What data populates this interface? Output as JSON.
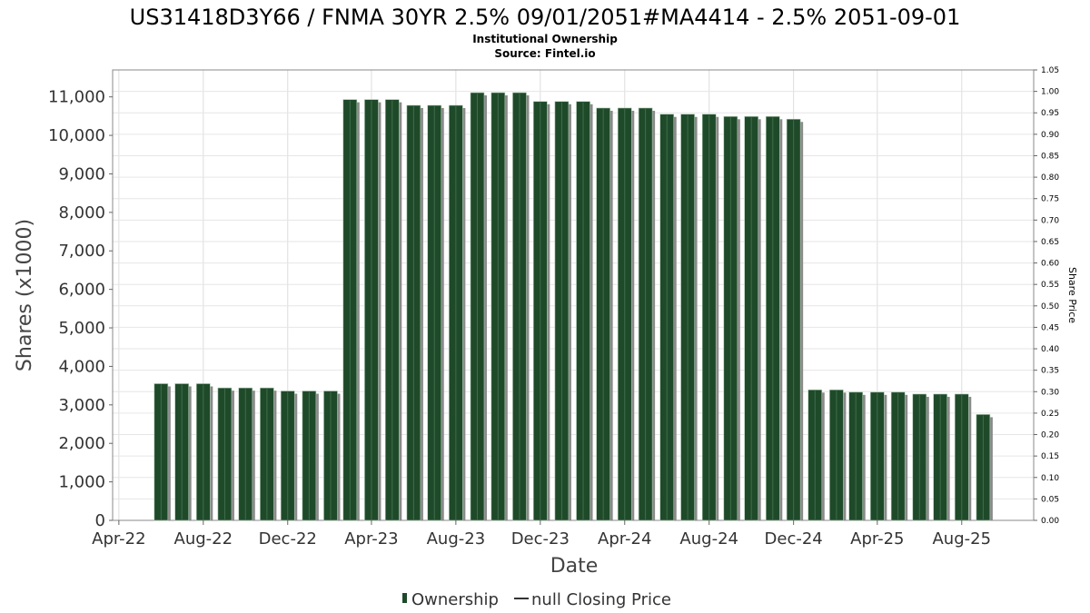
{
  "chart_data": {
    "type": "bar",
    "title": "US31418D3Y66 / FNMA 30YR 2.5% 09/01/2051#MA4414 - 2.5% 2051-09-01",
    "subtitle": "Institutional Ownership",
    "source": "Source: Fintel.io",
    "xlabel": "Date",
    "ylabel": "Shares (x1000)",
    "y2label": "Share Price",
    "ylim": [
      0,
      11700
    ],
    "y2lim": [
      0,
      1.05
    ],
    "yticks": [
      0,
      1000,
      2000,
      3000,
      4000,
      5000,
      6000,
      7000,
      8000,
      9000,
      10000,
      11000
    ],
    "ytick_labels": [
      "0",
      "1,000",
      "2,000",
      "3,000",
      "4,000",
      "5,000",
      "6,000",
      "7,000",
      "8,000",
      "9,000",
      "10,000",
      "11,000"
    ],
    "y2ticks": [
      0,
      0.05,
      0.1,
      0.15,
      0.2,
      0.25,
      0.3,
      0.35,
      0.4,
      0.45,
      0.5,
      0.55,
      0.6,
      0.65,
      0.7,
      0.75,
      0.8,
      0.85,
      0.9,
      0.95,
      1.0,
      1.05
    ],
    "y2tick_labels": [
      "0.00",
      "0.05",
      "0.10",
      "0.15",
      "0.20",
      "0.25",
      "0.30",
      "0.35",
      "0.40",
      "0.45",
      "0.50",
      "0.55",
      "0.60",
      "0.65",
      "0.70",
      "0.75",
      "0.80",
      "0.85",
      "0.90",
      "0.95",
      "1.00",
      "1.05"
    ],
    "xlim": [
      "2022-03-23",
      "2025-11-13"
    ],
    "xticks": [
      "2022-04-01",
      "2022-08-01",
      "2022-12-01",
      "2023-04-01",
      "2023-08-01",
      "2023-12-01",
      "2024-04-01",
      "2024-08-01",
      "2024-12-01",
      "2025-04-01",
      "2025-08-01"
    ],
    "xtick_labels": [
      "Apr-22",
      "Aug-22",
      "Dec-22",
      "Apr-23",
      "Aug-23",
      "Dec-23",
      "Apr-24",
      "Aug-24",
      "Dec-24",
      "Apr-25",
      "Aug-25"
    ],
    "grid": true,
    "legend_placement": "bottom-center",
    "series": [
      {
        "name": "Ownership",
        "color": "#1f4a2a",
        "points": [
          {
            "x": "2022-06-01",
            "y": 3550
          },
          {
            "x": "2022-07-01",
            "y": 3550
          },
          {
            "x": "2022-08-01",
            "y": 3550
          },
          {
            "x": "2022-09-01",
            "y": 3440
          },
          {
            "x": "2022-10-01",
            "y": 3440
          },
          {
            "x": "2022-11-01",
            "y": 3440
          },
          {
            "x": "2022-12-01",
            "y": 3360
          },
          {
            "x": "2023-01-01",
            "y": 3360
          },
          {
            "x": "2023-02-01",
            "y": 3360
          },
          {
            "x": "2023-03-01",
            "y": 10930
          },
          {
            "x": "2023-04-01",
            "y": 10930
          },
          {
            "x": "2023-05-01",
            "y": 10930
          },
          {
            "x": "2023-06-01",
            "y": 10780
          },
          {
            "x": "2023-07-01",
            "y": 10780
          },
          {
            "x": "2023-08-01",
            "y": 10780
          },
          {
            "x": "2023-09-01",
            "y": 11110
          },
          {
            "x": "2023-10-01",
            "y": 11110
          },
          {
            "x": "2023-11-01",
            "y": 11110
          },
          {
            "x": "2023-12-01",
            "y": 10880
          },
          {
            "x": "2024-01-01",
            "y": 10880
          },
          {
            "x": "2024-02-01",
            "y": 10880
          },
          {
            "x": "2024-03-01",
            "y": 10710
          },
          {
            "x": "2024-04-01",
            "y": 10710
          },
          {
            "x": "2024-05-01",
            "y": 10710
          },
          {
            "x": "2024-06-01",
            "y": 10550
          },
          {
            "x": "2024-07-01",
            "y": 10550
          },
          {
            "x": "2024-08-01",
            "y": 10550
          },
          {
            "x": "2024-09-01",
            "y": 10490
          },
          {
            "x": "2024-10-01",
            "y": 10490
          },
          {
            "x": "2024-11-01",
            "y": 10490
          },
          {
            "x": "2024-12-01",
            "y": 10420
          },
          {
            "x": "2025-01-01",
            "y": 3390
          },
          {
            "x": "2025-02-01",
            "y": 3390
          },
          {
            "x": "2025-03-01",
            "y": 3330
          },
          {
            "x": "2025-04-01",
            "y": 3330
          },
          {
            "x": "2025-05-01",
            "y": 3330
          },
          {
            "x": "2025-06-01",
            "y": 3280
          },
          {
            "x": "2025-07-01",
            "y": 3280
          },
          {
            "x": "2025-08-01",
            "y": 3280
          },
          {
            "x": "2025-09-01",
            "y": 2750
          }
        ]
      },
      {
        "name": "null Closing Price",
        "color": "#333333",
        "points": []
      }
    ]
  }
}
